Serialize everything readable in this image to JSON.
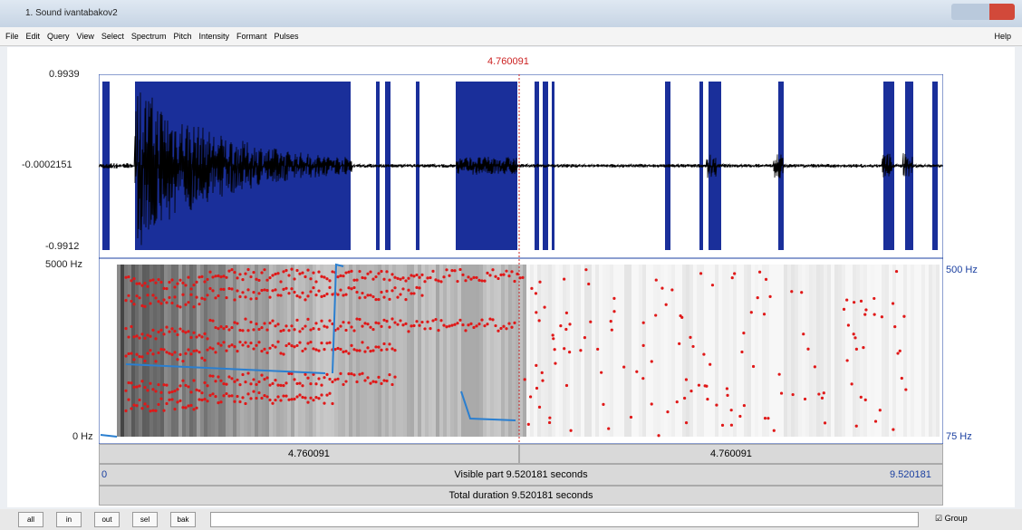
{
  "window": {
    "title": "1. Sound ivantabakov2"
  },
  "menu": {
    "items": [
      "File",
      "Edit",
      "Query",
      "View",
      "Select",
      "Spectrum",
      "Pitch",
      "Intensity",
      "Formant",
      "Pulses"
    ],
    "help": "Help"
  },
  "editor": {
    "cursor_time": "4.760091",
    "waveform": {
      "top": "0.9939",
      "middle": "-0.0002151",
      "bottom": "-0.9912"
    },
    "spectrogram": {
      "top_freq": "5000 Hz",
      "bottom_freq": "0 Hz",
      "pitch_top": "500 Hz",
      "pitch_bottom": "75 Hz"
    },
    "bars": {
      "left_part": "4.760091",
      "right_part": "4.760091",
      "visible_start": "0",
      "visible_label": "Visible part 9.520181 seconds",
      "visible_end": "9.520181",
      "total_label": "Total duration 9.520181 seconds"
    }
  },
  "toolbar": {
    "buttons": [
      "all",
      "in",
      "out",
      "sel",
      "bak"
    ],
    "group": "Group"
  }
}
